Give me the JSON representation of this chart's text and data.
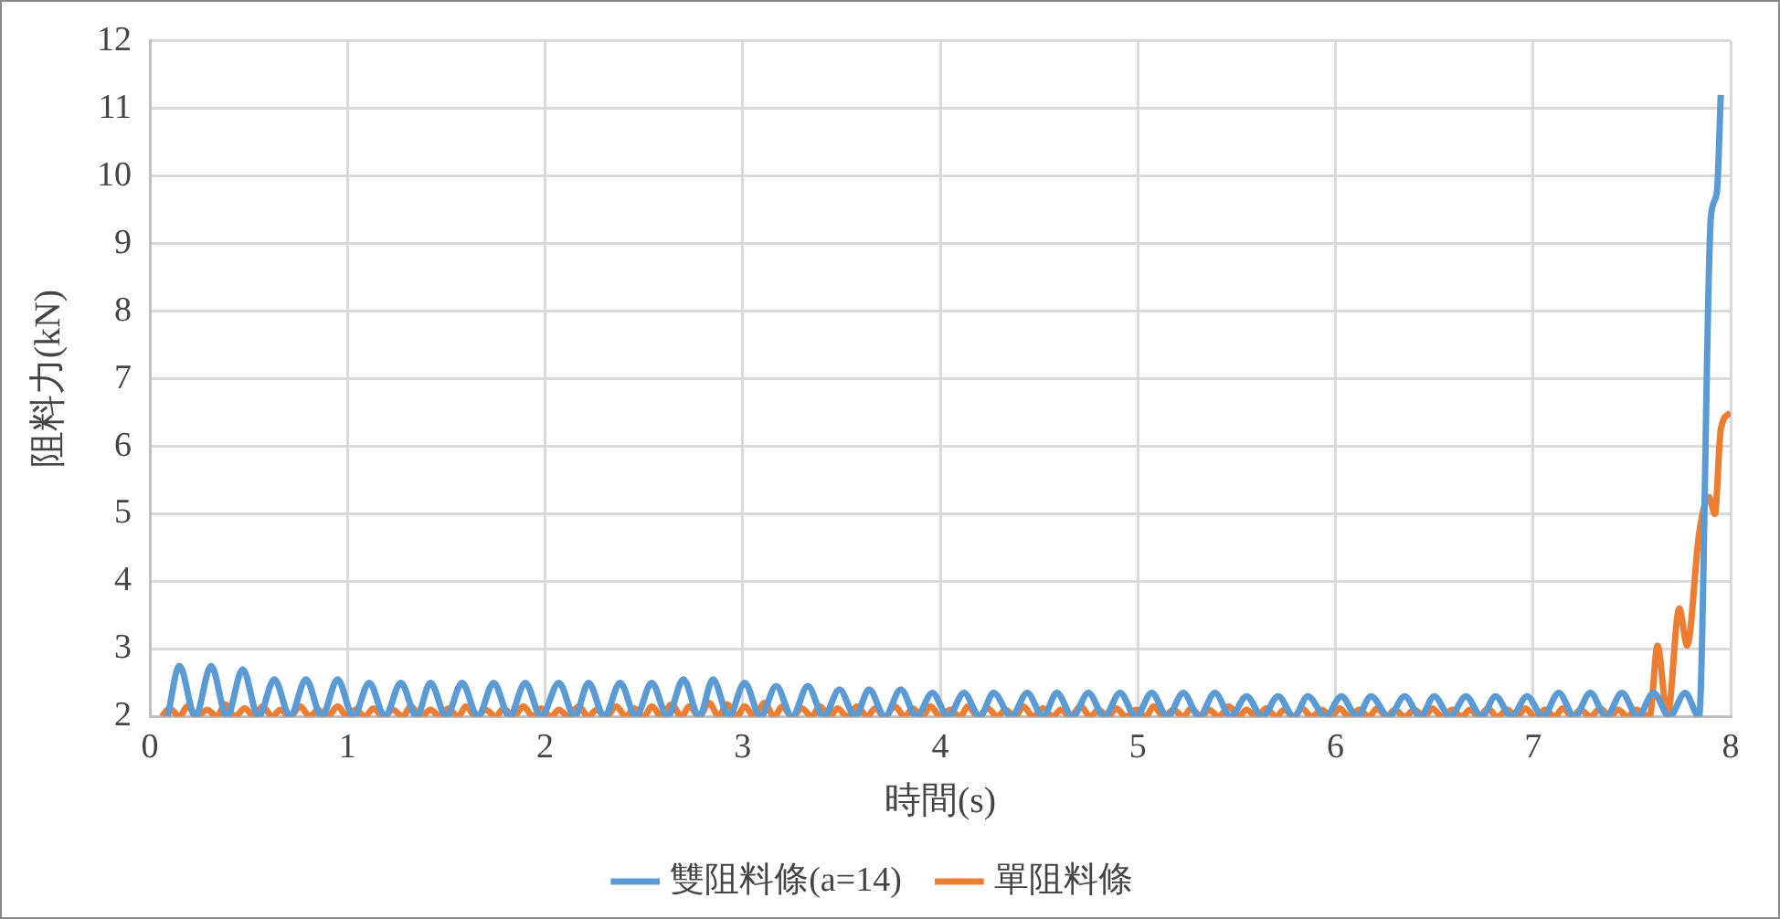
{
  "chart_data": {
    "type": "line",
    "xlabel": "時間(s)",
    "ylabel": "阻料力(kN)",
    "xlim": [
      0,
      8
    ],
    "xticks": [
      0,
      1,
      2,
      3,
      4,
      5,
      6,
      7,
      8
    ],
    "ylim": [
      2,
      12
    ],
    "yticks": [
      2,
      3,
      4,
      5,
      6,
      7,
      8,
      9,
      10,
      11,
      12
    ],
    "grid": true,
    "legend": "bottom",
    "marker": "none",
    "line_style": "solid",
    "series": [
      {
        "name": "雙阻料條(a=14)",
        "color": "#5b9bd5",
        "x": [
          0.09,
          0.15,
          0.23,
          0.31,
          0.39,
          0.47,
          0.55,
          0.63,
          0.71,
          0.79,
          0.87,
          0.95,
          1.03,
          1.11,
          1.19,
          1.27,
          1.35,
          1.42,
          1.5,
          1.58,
          1.66,
          1.74,
          1.82,
          1.9,
          1.98,
          2.07,
          2.15,
          2.22,
          2.3,
          2.38,
          2.46,
          2.54,
          2.62,
          2.7,
          2.78,
          2.85,
          2.93,
          3.01,
          3.09,
          3.17,
          3.25,
          3.33,
          3.41,
          3.49,
          3.57,
          3.64,
          3.72,
          3.8,
          3.88,
          3.96,
          4.04,
          4.12,
          4.2,
          4.27,
          4.36,
          4.44,
          4.52,
          4.59,
          4.67,
          4.75,
          4.83,
          4.91,
          4.99,
          5.07,
          5.15,
          5.23,
          5.31,
          5.39,
          5.47,
          5.55,
          5.63,
          5.71,
          5.79,
          5.86,
          5.95,
          6.03,
          6.11,
          6.18,
          6.27,
          6.35,
          6.43,
          6.5,
          6.58,
          6.66,
          6.74,
          6.81,
          6.89,
          6.97,
          7.05,
          7.13,
          7.21,
          7.29,
          7.37,
          7.45,
          7.53,
          7.61,
          7.69,
          7.77,
          7.84,
          7.9,
          7.93,
          7.95
        ],
        "values": [
          2,
          2.75,
          2,
          2.75,
          2,
          2.7,
          2,
          2.55,
          2,
          2.55,
          2,
          2.55,
          2,
          2.5,
          2,
          2.5,
          2,
          2.5,
          2,
          2.5,
          2,
          2.5,
          2,
          2.5,
          2,
          2.5,
          2,
          2.5,
          2,
          2.5,
          2,
          2.5,
          2,
          2.55,
          2,
          2.55,
          2,
          2.5,
          2,
          2.45,
          2,
          2.45,
          2,
          2.4,
          2,
          2.4,
          2,
          2.4,
          2,
          2.35,
          2,
          2.35,
          2,
          2.35,
          2,
          2.35,
          2,
          2.35,
          2,
          2.35,
          2,
          2.35,
          2,
          2.35,
          2,
          2.35,
          2,
          2.35,
          2,
          2.3,
          2,
          2.3,
          2,
          2.3,
          2,
          2.3,
          2,
          2.3,
          2,
          2.3,
          2,
          2.3,
          2,
          2.3,
          2,
          2.3,
          2,
          2.3,
          2,
          2.35,
          2,
          2.35,
          2,
          2.35,
          2,
          2.35,
          2,
          2.35,
          2,
          9.4,
          9.75,
          11.2
        ]
      },
      {
        "name": "單阻料條",
        "color": "#ed7d31",
        "x": [
          0.06,
          0.1,
          0.15,
          0.19,
          0.24,
          0.29,
          0.34,
          0.38,
          0.43,
          0.48,
          0.53,
          0.57,
          0.62,
          0.66,
          0.71,
          0.76,
          0.81,
          0.85,
          0.9,
          0.95,
          1.0,
          1.04,
          1.09,
          1.13,
          1.18,
          1.23,
          1.28,
          1.32,
          1.37,
          1.42,
          1.47,
          1.51,
          1.56,
          1.6,
          1.65,
          1.7,
          1.75,
          1.79,
          1.84,
          1.89,
          1.94,
          1.98,
          2.03,
          2.07,
          2.12,
          2.17,
          2.22,
          2.26,
          2.31,
          2.36,
          2.41,
          2.45,
          2.5,
          2.54,
          2.59,
          2.64,
          2.69,
          2.73,
          2.78,
          2.83,
          2.88,
          2.92,
          2.97,
          3.01,
          3.06,
          3.11,
          3.16,
          3.2,
          3.25,
          3.3,
          3.35,
          3.39,
          3.44,
          3.48,
          3.53,
          3.58,
          3.63,
          3.67,
          3.72,
          3.77,
          3.82,
          3.86,
          3.91,
          3.95,
          4.0,
          4.05,
          4.1,
          4.14,
          4.19,
          4.24,
          4.29,
          4.33,
          4.38,
          4.42,
          4.47,
          4.52,
          4.57,
          4.61,
          4.66,
          4.71,
          4.76,
          4.8,
          4.85,
          4.89,
          4.94,
          4.99,
          5.04,
          5.08,
          5.13,
          5.18,
          5.23,
          5.27,
          5.32,
          5.36,
          5.41,
          5.46,
          5.51,
          5.55,
          5.6,
          5.65,
          5.7,
          5.74,
          5.79,
          5.83,
          5.88,
          5.93,
          5.98,
          6.02,
          6.07,
          6.12,
          6.17,
          6.21,
          6.26,
          6.3,
          6.35,
          6.4,
          6.45,
          6.49,
          6.54,
          6.59,
          6.64,
          6.68,
          6.73,
          6.77,
          6.82,
          6.87,
          6.92,
          6.96,
          7.01,
          7.06,
          7.11,
          7.15,
          7.2,
          7.24,
          7.29,
          7.34,
          7.39,
          7.43,
          7.48,
          7.52,
          7.59,
          7.63,
          7.68,
          7.74,
          7.78,
          7.84,
          7.89,
          7.92,
          7.95,
          8.0
        ],
        "values": [
          2,
          2.12,
          2,
          2.15,
          2,
          2.1,
          2,
          2.18,
          2,
          2.12,
          2,
          2.15,
          2,
          2.1,
          2,
          2.15,
          2,
          2.1,
          2,
          2.15,
          2,
          2.1,
          2,
          2.12,
          2,
          2.1,
          2,
          2.15,
          2,
          2.1,
          2,
          2.12,
          2,
          2.15,
          2,
          2.1,
          2,
          2.12,
          2,
          2.15,
          2,
          2.12,
          2,
          2.1,
          2,
          2.15,
          2,
          2.1,
          2,
          2.15,
          2,
          2.12,
          2,
          2.15,
          2,
          2.18,
          2,
          2.15,
          2,
          2.2,
          2,
          2.18,
          2,
          2.15,
          2,
          2.2,
          2,
          2.15,
          2,
          2.12,
          2,
          2.15,
          2,
          2.12,
          2,
          2.15,
          2,
          2.12,
          2,
          2.15,
          2,
          2.12,
          2,
          2.15,
          2,
          2.1,
          2,
          2.15,
          2,
          2.12,
          2,
          2.1,
          2,
          2.15,
          2,
          2.12,
          2,
          2.1,
          2,
          2.15,
          2,
          2.1,
          2,
          2.12,
          2,
          2.1,
          2,
          2.15,
          2,
          2.1,
          2,
          2.12,
          2,
          2.1,
          2,
          2.15,
          2,
          2.1,
          2,
          2.12,
          2,
          2.1,
          2,
          2.12,
          2,
          2.1,
          2,
          2.12,
          2,
          2.1,
          2,
          2.12,
          2,
          2.1,
          2,
          2.1,
          2,
          2.12,
          2,
          2.1,
          2,
          2.1,
          2,
          2.12,
          2,
          2.1,
          2,
          2.12,
          2,
          2.1,
          2,
          2.12,
          2,
          2.1,
          2,
          2.12,
          2,
          2.1,
          2,
          2.1,
          2,
          3.05,
          2,
          3.6,
          3.05,
          4.7,
          5.25,
          5.0,
          6.25,
          6.5
        ]
      }
    ]
  }
}
